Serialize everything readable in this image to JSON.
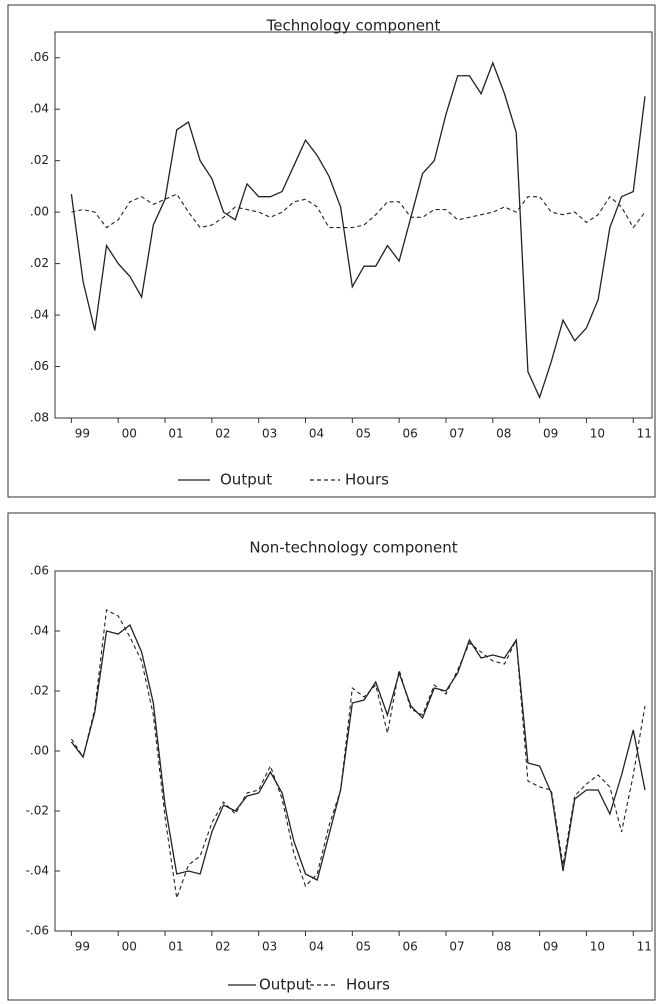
{
  "chart_data": [
    {
      "type": "line",
      "title": "Technology component",
      "legend": "bottom",
      "x": [
        1999,
        1999.25,
        1999.5,
        1999.75,
        2000,
        2000.25,
        2000.5,
        2000.75,
        2001,
        2001.25,
        2001.5,
        2001.75,
        2002,
        2002.25,
        2002.5,
        2002.75,
        2003,
        2003.25,
        2003.5,
        2003.75,
        2004,
        2004.25,
        2004.5,
        2004.75,
        2005,
        2005.25,
        2005.5,
        2005.75,
        2006,
        2006.25,
        2006.5,
        2006.75,
        2007,
        2007.25,
        2007.5,
        2007.75,
        2008,
        2008.25,
        2008.5,
        2008.75,
        2009,
        2009.25,
        2009.5,
        2009.75,
        2010,
        2010.25,
        2010.5,
        2010.75,
        2011,
        2011.25
      ],
      "xlim": [
        1998.65,
        2011.4
      ],
      "xticks": [
        {
          "value": 1999,
          "label": "99"
        },
        {
          "value": 2000,
          "label": "00"
        },
        {
          "value": 2001,
          "label": "01"
        },
        {
          "value": 2002,
          "label": "02"
        },
        {
          "value": 2003,
          "label": "03"
        },
        {
          "value": 2004,
          "label": "04"
        },
        {
          "value": 2005,
          "label": "05"
        },
        {
          "value": 2006,
          "label": "06"
        },
        {
          "value": 2007,
          "label": "07"
        },
        {
          "value": 2008,
          "label": "08"
        },
        {
          "value": 2009,
          "label": "09"
        },
        {
          "value": 2010,
          "label": "10"
        },
        {
          "value": 2011,
          "label": "11"
        }
      ],
      "ylim": [
        -0.08,
        0.07
      ],
      "yticks": [
        {
          "value": 0.06,
          "label": ".06"
        },
        {
          "value": 0.04,
          "label": ".04"
        },
        {
          "value": 0.02,
          "label": ".02"
        },
        {
          "value": 0,
          "label": ".00"
        },
        {
          "value": -0.02,
          "label": ".02"
        },
        {
          "value": -0.04,
          "label": ".04"
        },
        {
          "value": -0.06,
          "label": ".06"
        },
        {
          "value": -0.08,
          "label": ".08"
        }
      ],
      "series": [
        {
          "name": "Output",
          "color": "#222222",
          "dash": "solid",
          "values": [
            0.007,
            -0.027,
            -0.046,
            -0.013,
            -0.02,
            -0.025,
            -0.033,
            -0.005,
            0.005,
            0.032,
            0.035,
            0.02,
            0.013,
            0.0,
            -0.003,
            0.011,
            0.006,
            0.006,
            0.008,
            0.018,
            0.028,
            0.022,
            0.014,
            0.002,
            -0.029,
            -0.021,
            -0.021,
            -0.013,
            -0.019,
            -0.002,
            0.015,
            0.02,
            0.038,
            0.053,
            0.053,
            0.046,
            0.058,
            0.046,
            0.031,
            -0.062,
            -0.072,
            -0.058,
            -0.042,
            -0.05,
            -0.045,
            -0.034,
            -0.006,
            0.006,
            0.008,
            0.045
          ]
        },
        {
          "name": "Hours",
          "color": "#222222",
          "dash": "dashed",
          "values": [
            0.0,
            0.001,
            0.0,
            -0.006,
            -0.003,
            0.004,
            0.006,
            0.003,
            0.005,
            0.007,
            0.0,
            -0.006,
            -0.005,
            -0.002,
            0.002,
            0.001,
            0.0,
            -0.002,
            0.0,
            0.004,
            0.005,
            0.002,
            -0.006,
            -0.006,
            -0.006,
            -0.005,
            -0.001,
            0.004,
            0.004,
            -0.002,
            -0.002,
            0.001,
            0.001,
            -0.003,
            -0.002,
            -0.001,
            0.0,
            0.002,
            0.0,
            0.006,
            0.006,
            0.0,
            -0.001,
            0.0,
            -0.004,
            -0.001,
            0.006,
            0.002,
            -0.006,
            0.0
          ]
        }
      ]
    },
    {
      "type": "line",
      "title": "Non-technology component",
      "legend": "bottom",
      "x": [
        1999,
        1999.25,
        1999.5,
        1999.75,
        2000,
        2000.25,
        2000.5,
        2000.75,
        2001,
        2001.25,
        2001.5,
        2001.75,
        2002,
        2002.25,
        2002.5,
        2002.75,
        2003,
        2003.25,
        2003.5,
        2003.75,
        2004,
        2004.25,
        2004.5,
        2004.75,
        2005,
        2005.25,
        2005.5,
        2005.75,
        2006,
        2006.25,
        2006.5,
        2006.75,
        2007,
        2007.25,
        2007.5,
        2007.75,
        2008,
        2008.25,
        2008.5,
        2008.75,
        2009,
        2009.25,
        2009.5,
        2009.75,
        2010,
        2010.25,
        2010.5,
        2010.75,
        2011,
        2011.25
      ],
      "xlim": [
        1998.65,
        2011.4
      ],
      "xticks": [
        {
          "value": 1999,
          "label": "99"
        },
        {
          "value": 2000,
          "label": "00"
        },
        {
          "value": 2001,
          "label": "01"
        },
        {
          "value": 2002,
          "label": "02"
        },
        {
          "value": 2003,
          "label": "03"
        },
        {
          "value": 2004,
          "label": "04"
        },
        {
          "value": 2005,
          "label": "05"
        },
        {
          "value": 2006,
          "label": "06"
        },
        {
          "value": 2007,
          "label": "07"
        },
        {
          "value": 2008,
          "label": "08"
        },
        {
          "value": 2009,
          "label": "09"
        },
        {
          "value": 2010,
          "label": "10"
        },
        {
          "value": 2011,
          "label": "11"
        }
      ],
      "ylim": [
        -0.06,
        0.06
      ],
      "yticks": [
        {
          "value": 0.06,
          "label": ".06"
        },
        {
          "value": 0.04,
          "label": ".04"
        },
        {
          "value": 0.02,
          "label": ".02"
        },
        {
          "value": 0,
          "label": ".00"
        },
        {
          "value": -0.02,
          "label": "-.02"
        },
        {
          "value": -0.04,
          "label": "-.04"
        },
        {
          "value": -0.06,
          "label": "-.06"
        }
      ],
      "series": [
        {
          "name": "Output",
          "color": "#222222",
          "dash": "solid",
          "values": [
            0.003,
            -0.002,
            0.013,
            0.04,
            0.039,
            0.042,
            0.033,
            0.016,
            -0.018,
            -0.041,
            -0.04,
            -0.041,
            -0.027,
            -0.018,
            -0.02,
            -0.015,
            -0.014,
            -0.007,
            -0.014,
            -0.03,
            -0.041,
            -0.043,
            -0.028,
            -0.013,
            0.016,
            0.017,
            0.023,
            0.012,
            0.026,
            0.015,
            0.011,
            0.021,
            0.02,
            0.026,
            0.037,
            0.031,
            0.032,
            0.031,
            0.037,
            -0.004,
            -0.005,
            -0.014,
            -0.04,
            -0.016,
            -0.013,
            -0.013,
            -0.021,
            -0.008,
            0.007,
            -0.013
          ]
        },
        {
          "name": "Hours",
          "color": "#222222",
          "dash": "dashed",
          "values": [
            0.004,
            -0.002,
            0.014,
            0.047,
            0.045,
            0.038,
            0.03,
            0.012,
            -0.022,
            -0.049,
            -0.038,
            -0.035,
            -0.024,
            -0.017,
            -0.021,
            -0.014,
            -0.013,
            -0.005,
            -0.016,
            -0.034,
            -0.045,
            -0.041,
            -0.025,
            -0.013,
            0.021,
            0.018,
            0.022,
            0.006,
            0.027,
            0.014,
            0.012,
            0.022,
            0.019,
            0.027,
            0.036,
            0.033,
            0.03,
            0.029,
            0.037,
            -0.01,
            -0.012,
            -0.013,
            -0.038,
            -0.015,
            -0.011,
            -0.008,
            -0.012,
            -0.027,
            -0.008,
            0.015
          ]
        }
      ]
    }
  ]
}
